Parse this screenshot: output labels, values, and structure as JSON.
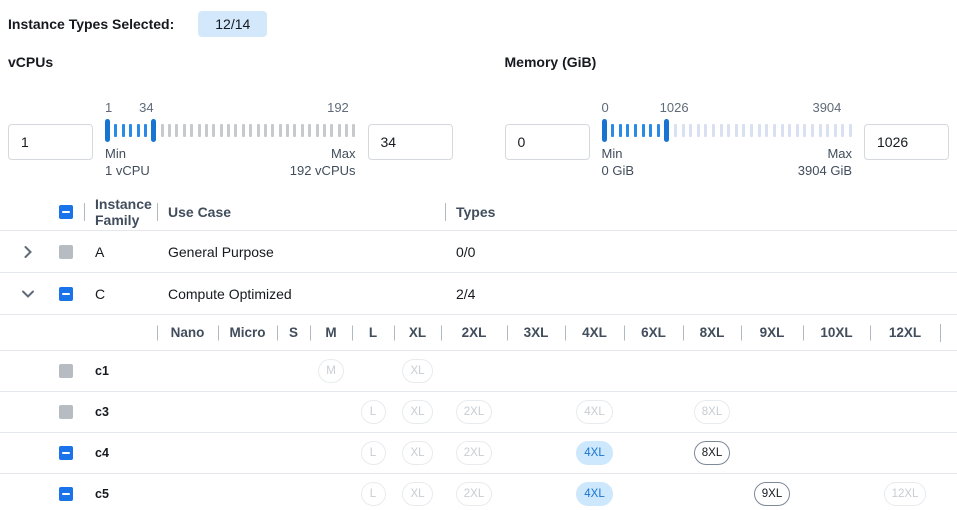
{
  "header": {
    "label": "Instance Types Selected:",
    "badge": "12/14"
  },
  "colors": {
    "accent_blue": "#1a73e8",
    "badge_bg": "#d4e8fb",
    "selected_pill_bg": "#cde7fc",
    "selected_pill_text": "#1774d1",
    "slider_handle": "#1774d1",
    "slider_selected_tick": "#2a8ae6"
  },
  "filters": [
    {
      "label": "vCPUs",
      "min_value": "1",
      "max_value": "34",
      "scale_labels": [
        {
          "text": "1",
          "pos": 0,
          "align": "left"
        },
        {
          "text": "34",
          "pos": 16.5,
          "align": "center"
        },
        {
          "text": "192",
          "pos": 93,
          "align": "center"
        }
      ],
      "min_caption": [
        "Min",
        "1 vCPU"
      ],
      "max_caption": [
        "Max",
        "192 vCPUs"
      ],
      "slider": {
        "tick_count": 34,
        "handle2_index": 6,
        "unselected_color": "#c7cacd"
      }
    },
    {
      "label": "Memory (GiB)",
      "min_value": "0",
      "max_value": "1026",
      "scale_labels": [
        {
          "text": "0",
          "pos": 0,
          "align": "left"
        },
        {
          "text": "1026",
          "pos": 29,
          "align": "center"
        },
        {
          "text": "3904",
          "pos": 90,
          "align": "center"
        }
      ],
      "min_caption": [
        "Min",
        "0 GiB"
      ],
      "max_caption": [
        "Max",
        "3904 GiB"
      ],
      "slider": {
        "tick_count": 33,
        "handle2_index": 8,
        "unselected_color": "#d8e0f1"
      }
    }
  ],
  "table": {
    "columns": {
      "family": "Instance Family",
      "use_case": "Use Case",
      "types": "Types"
    },
    "select_all_state": "indeterminate",
    "family_rows": [
      {
        "family": "A",
        "use_case": "General Purpose",
        "types": "0/0",
        "expanded": false,
        "checkbox": "disabled"
      },
      {
        "family": "C",
        "use_case": "Compute Optimized",
        "types": "2/4",
        "expanded": true,
        "checkbox": "indeterminate"
      }
    ],
    "sizes": [
      "Nano",
      "Micro",
      "S",
      "M",
      "L",
      "XL",
      "2XL",
      "3XL",
      "4XL",
      "6XL",
      "8XL",
      "9XL",
      "10XL",
      "12XL"
    ],
    "instance_rows": [
      {
        "name": "c1",
        "checkbox": "disabled",
        "pills": {
          "M": "disabled",
          "XL": "disabled"
        }
      },
      {
        "name": "c3",
        "checkbox": "disabled",
        "pills": {
          "L": "disabled",
          "XL": "disabled",
          "2XL": "disabled",
          "4XL": "disabled",
          "8XL": "disabled"
        }
      },
      {
        "name": "c4",
        "checkbox": "indeterminate",
        "pills": {
          "L": "disabled",
          "XL": "disabled",
          "2XL": "disabled",
          "4XL": "selected",
          "8XL": "enabled"
        }
      },
      {
        "name": "c5",
        "checkbox": "indeterminate",
        "pills": {
          "L": "disabled",
          "XL": "disabled",
          "2XL": "disabled",
          "4XL": "selected",
          "9XL": "enabled",
          "12XL": "disabled"
        }
      }
    ]
  }
}
